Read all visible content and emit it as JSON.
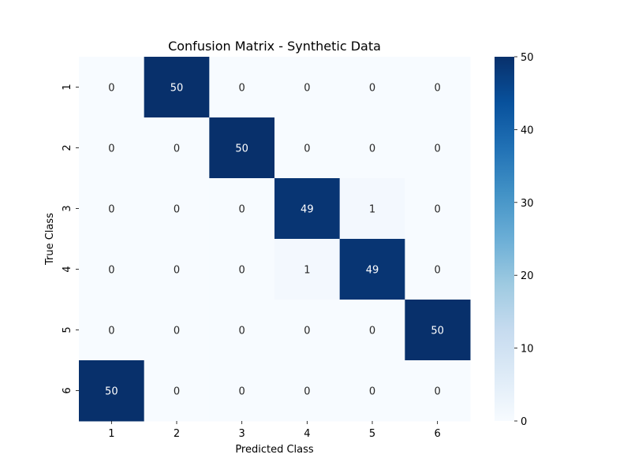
{
  "chart_data": {
    "type": "heatmap",
    "title": "Confusion Matrix - Synthetic Data",
    "xlabel": "Predicted Class",
    "ylabel": "True Class",
    "x_categories": [
      "1",
      "2",
      "3",
      "4",
      "5",
      "6"
    ],
    "y_categories": [
      "1",
      "2",
      "3",
      "4",
      "5",
      "6"
    ],
    "values": [
      [
        0,
        50,
        0,
        0,
        0,
        0
      ],
      [
        0,
        0,
        50,
        0,
        0,
        0
      ],
      [
        0,
        0,
        0,
        49,
        1,
        0
      ],
      [
        0,
        0,
        0,
        1,
        49,
        0
      ],
      [
        0,
        0,
        0,
        0,
        0,
        50
      ],
      [
        50,
        0,
        0,
        0,
        0,
        0
      ]
    ],
    "colormap": "Blues",
    "vmin": 0,
    "vmax": 50,
    "colorbar_ticks": [
      0,
      10,
      20,
      30,
      40,
      50
    ]
  }
}
